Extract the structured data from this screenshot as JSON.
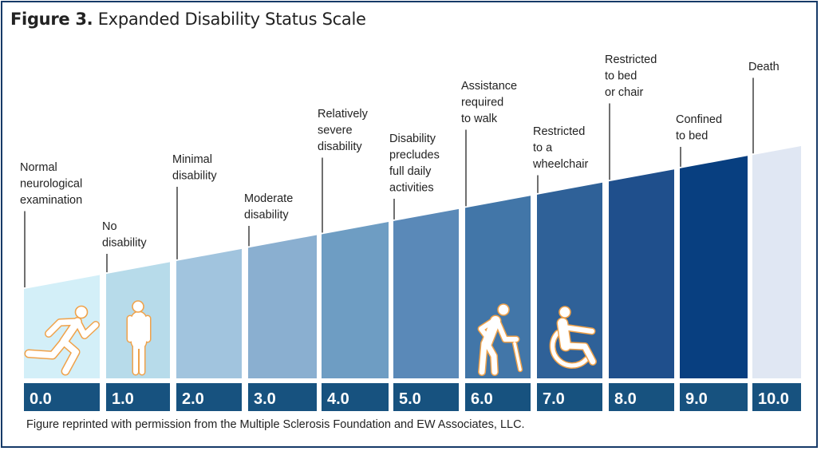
{
  "figure": {
    "label": "Figure 3.",
    "title": "Expanded Disability Status Scale",
    "footer": "Figure reprinted with permission from the Multiple Sclerosis Foundation and EW Associates, LLC."
  },
  "colors": {
    "number_box": "#17527f",
    "icon_outline": "#f0a24a",
    "icon_fill": "#ffffff",
    "border": "#163a68"
  },
  "steps": [
    {
      "score": "0.0",
      "label": [
        "Normal",
        "neurological",
        "examination"
      ],
      "color": "#d3eff8",
      "icon": "running-person-icon"
    },
    {
      "score": "1.0",
      "label": [
        "No",
        "disability"
      ],
      "color": "#b7dbea",
      "icon": "standing-person-icon"
    },
    {
      "score": "2.0",
      "label": [
        "Minimal",
        "disability"
      ],
      "color": "#a1c4de"
    },
    {
      "score": "3.0",
      "label": [
        "Moderate",
        "disability"
      ],
      "color": "#8aafd0"
    },
    {
      "score": "4.0",
      "label": [
        "Relatively",
        "severe",
        "disability"
      ],
      "color": "#6e9dc3"
    },
    {
      "score": "5.0",
      "label": [
        "Disability",
        "precludes",
        "full daily",
        "activities"
      ],
      "color": "#5a89b8"
    },
    {
      "score": "6.0",
      "label": [
        "Assistance",
        "required",
        "to walk"
      ],
      "color": "#4276a8",
      "icon": "person-with-cane-icon"
    },
    {
      "score": "7.0",
      "label": [
        "Restricted",
        "to a",
        "wheelchair"
      ],
      "color": "#2f6198",
      "icon": "wheelchair-icon"
    },
    {
      "score": "8.0",
      "label": [
        "Restricted",
        "to bed",
        "or chair"
      ],
      "color": "#1f4f8c"
    },
    {
      "score": "9.0",
      "label": [
        "Confined",
        "to bed"
      ],
      "color": "#083f80"
    },
    {
      "score": "10.0",
      "label": [
        "Death"
      ],
      "color": "#e0e7f3"
    }
  ]
}
